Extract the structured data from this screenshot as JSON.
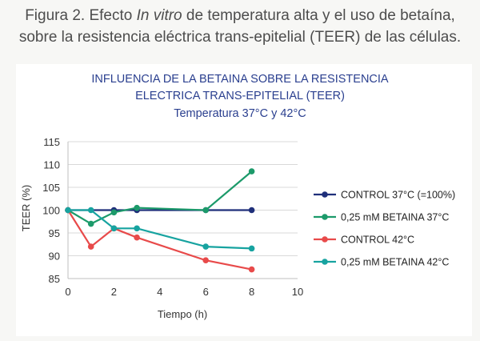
{
  "caption": {
    "line1_before": "Figura 2. Efecto ",
    "line1_italic": "In vitro",
    "line1_after": " de temperatura alta y el uso de betaína,",
    "line2": "sobre la resistencia eléctrica trans-epitelial (TEER) de las células."
  },
  "chart_data": {
    "type": "line",
    "title": [
      "INFLUENCIA DE LA BETAINA SOBRE LA RESISTENCIA",
      "ELECTRICA TRANS-EPITELIAL (TEER)"
    ],
    "subtitle": "Temperatura 37°C y 42°C",
    "xlabel": "Tiempo (h)",
    "ylabel": "TEER (%)",
    "xlim": [
      0,
      10
    ],
    "ylim": [
      85,
      115
    ],
    "xticks": [
      0,
      2,
      4,
      6,
      8,
      10
    ],
    "yticks": [
      85,
      90,
      95,
      100,
      105,
      110,
      115
    ],
    "grid": "horizontal",
    "legend": "right",
    "series": [
      {
        "name": "CONTROL 37°C (=100%)",
        "color": "#1f2f7a",
        "x": [
          0,
          2,
          3,
          6,
          8
        ],
        "y": [
          100,
          100,
          100,
          100,
          100
        ]
      },
      {
        "name": "0,25 mM BETAINA 37°C",
        "color": "#1c9a6a",
        "x": [
          0,
          1,
          2,
          3,
          6,
          8
        ],
        "y": [
          100,
          97,
          99.5,
          100.5,
          100,
          108.5
        ]
      },
      {
        "name": "CONTROL 42°C",
        "color": "#e84a4a",
        "x": [
          0,
          1,
          2,
          3,
          6,
          8
        ],
        "y": [
          100,
          92,
          96,
          94,
          89,
          87
        ]
      },
      {
        "name": "0,25 mM BETAINA 42°C",
        "color": "#17a3a0",
        "x": [
          0,
          1,
          2,
          3,
          6,
          8
        ],
        "y": [
          100,
          100,
          96,
          96,
          92,
          91.6
        ]
      }
    ]
  }
}
